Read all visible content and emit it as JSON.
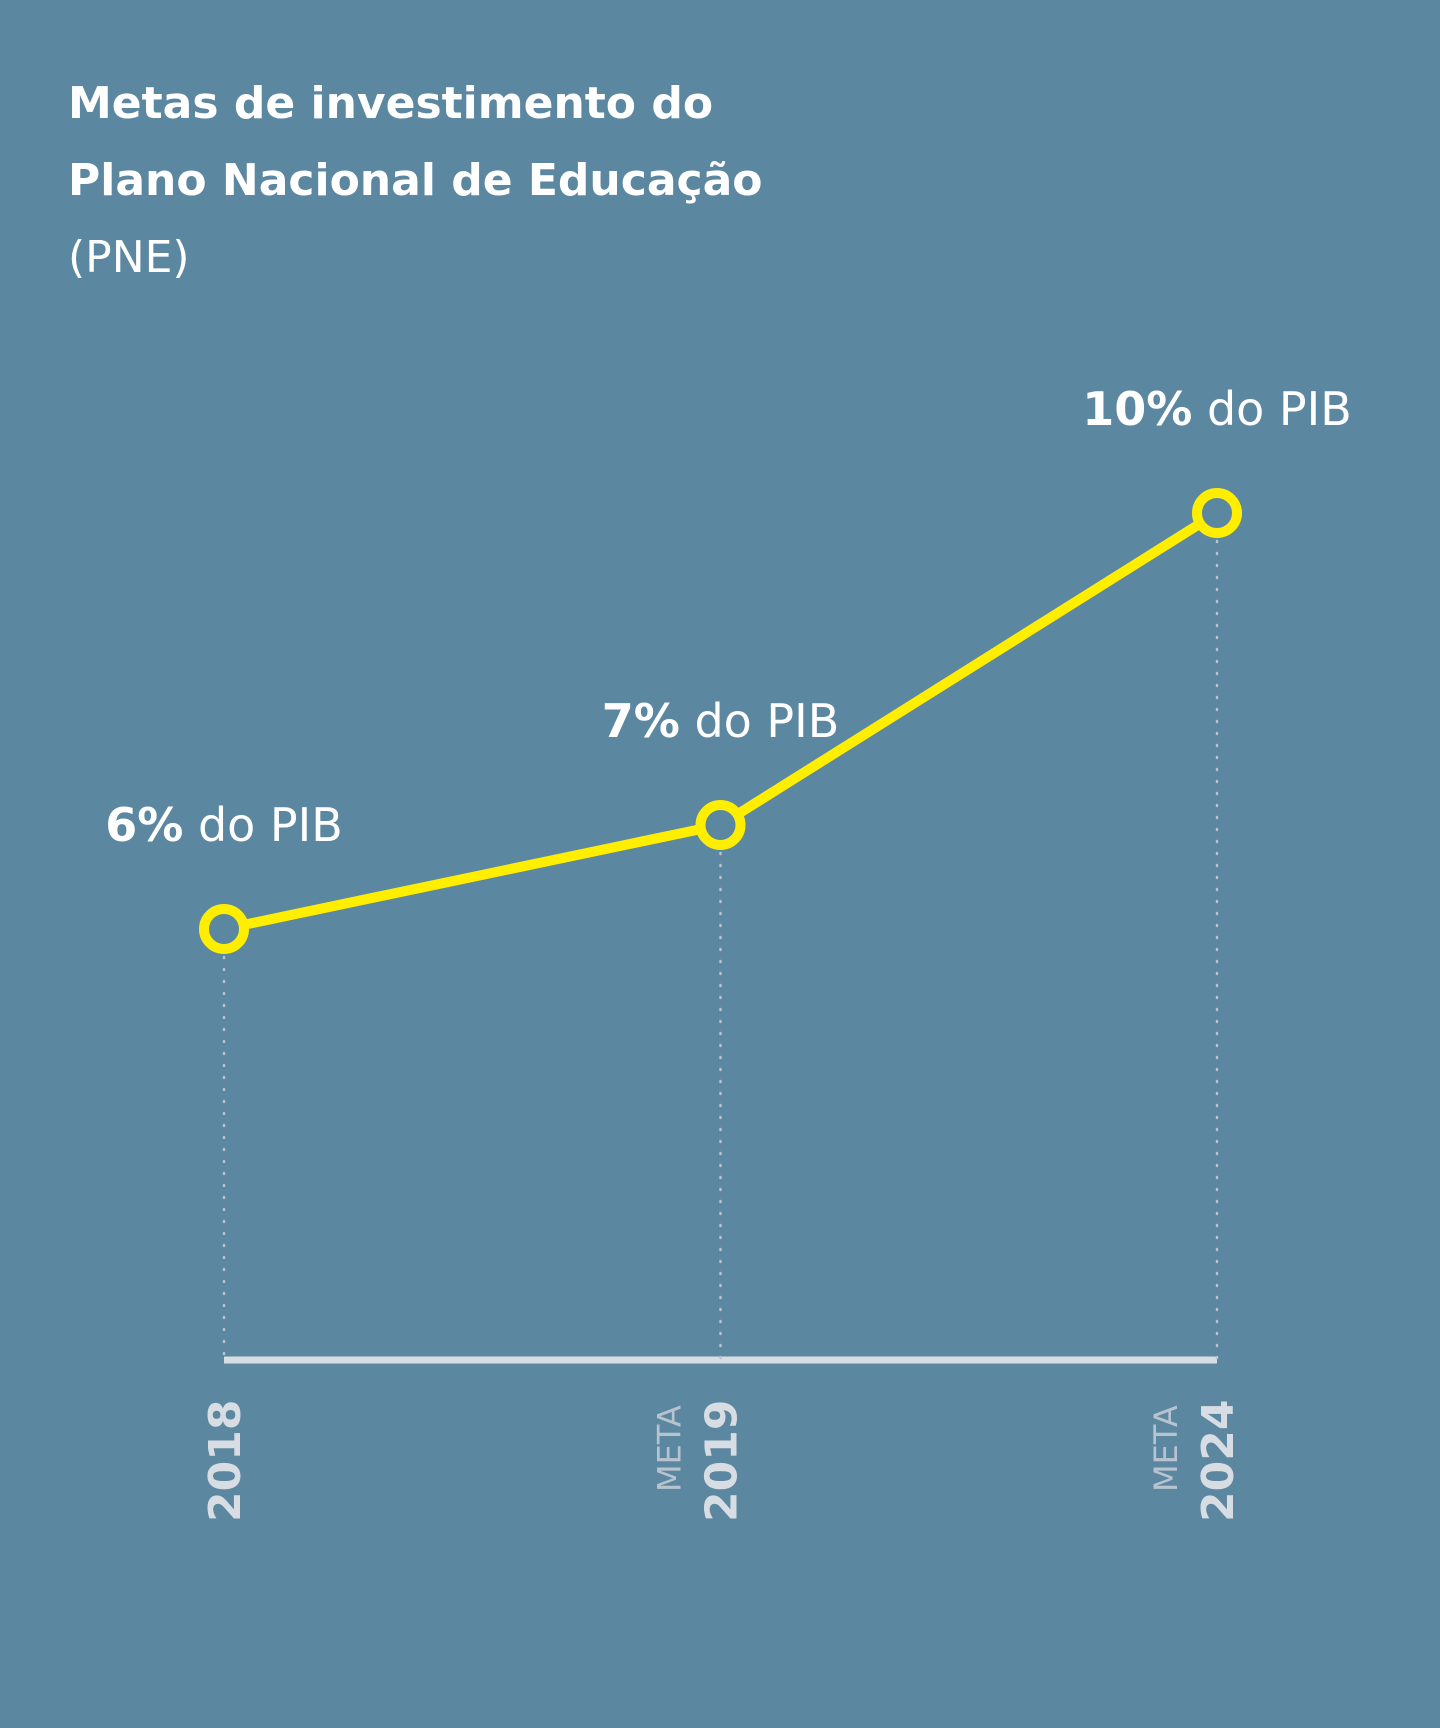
{
  "chart_data": {
    "type": "line",
    "title_lines": [
      "Metas de investimento do",
      "Plano Nacional de Educação"
    ],
    "subtitle": "(PNE)",
    "categories": [
      "2018",
      "2019",
      "2024"
    ],
    "category_notes": [
      null,
      "META",
      "META"
    ],
    "values": [
      6,
      7,
      10
    ],
    "value_labels": [
      "6%",
      "7%",
      "10%"
    ],
    "value_label_unit": "do PIB",
    "color": "#ffee00",
    "ylim": [
      2,
      12
    ]
  }
}
